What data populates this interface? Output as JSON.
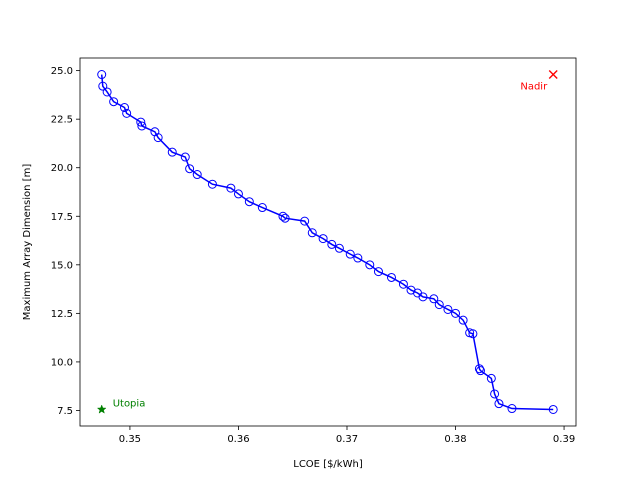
{
  "chart_data": {
    "type": "line",
    "title": "",
    "xlabel": "LCOE [$/kWh]",
    "ylabel": "Maximum Array Dimension [m]",
    "xlim": [
      0.3454,
      0.3911
    ],
    "ylim": [
      6.7,
      25.65
    ],
    "xticks": [
      0.35,
      0.36,
      0.37,
      0.38,
      0.39
    ],
    "xtick_labels": [
      "0.35",
      "0.36",
      "0.37",
      "0.38",
      "0.39"
    ],
    "yticks": [
      7.5,
      10.0,
      12.5,
      15.0,
      17.5,
      20.0,
      22.5,
      25.0
    ],
    "ytick_labels": [
      "7.5",
      "10.0",
      "12.5",
      "15.0",
      "17.5",
      "20.0",
      "22.5",
      "25.0"
    ],
    "grid": false,
    "series": [
      {
        "color": "#0000ff",
        "marker": "open-circle",
        "x": [
          0.3474,
          0.3475,
          0.3479,
          0.3485,
          0.3495,
          0.3497,
          0.351,
          0.3511,
          0.3523,
          0.3526,
          0.3539,
          0.3551,
          0.3555,
          0.3562,
          0.3576,
          0.3593,
          0.36,
          0.361,
          0.3622,
          0.3641,
          0.3643,
          0.3661,
          0.3668,
          0.3678,
          0.3686,
          0.3693,
          0.3703,
          0.371,
          0.3721,
          0.3729,
          0.3741,
          0.3752,
          0.3759,
          0.3765,
          0.377,
          0.378,
          0.3785,
          0.3793,
          0.38,
          0.3807,
          0.3813,
          0.3816,
          0.3822,
          0.3823,
          0.3833,
          0.3836,
          0.384,
          0.3852,
          0.389
        ],
        "y": [
          24.8,
          24.2,
          23.9,
          23.4,
          23.1,
          22.8,
          22.35,
          22.15,
          21.85,
          21.55,
          20.8,
          20.55,
          19.95,
          19.65,
          19.15,
          18.95,
          18.65,
          18.25,
          17.95,
          17.5,
          17.4,
          17.25,
          16.65,
          16.35,
          16.05,
          15.85,
          15.55,
          15.35,
          15.0,
          14.65,
          14.35,
          14.0,
          13.7,
          13.55,
          13.35,
          13.25,
          12.95,
          12.7,
          12.5,
          12.15,
          11.5,
          11.45,
          9.65,
          9.55,
          9.15,
          8.35,
          7.85,
          7.6,
          7.55
        ]
      }
    ],
    "points": [
      {
        "label": "Nadir",
        "x": 0.389,
        "y": 24.8,
        "marker": "x",
        "color": "#ff0000"
      },
      {
        "label": "Utopia",
        "x": 0.3474,
        "y": 7.55,
        "marker": "star",
        "color": "#008000"
      }
    ]
  }
}
